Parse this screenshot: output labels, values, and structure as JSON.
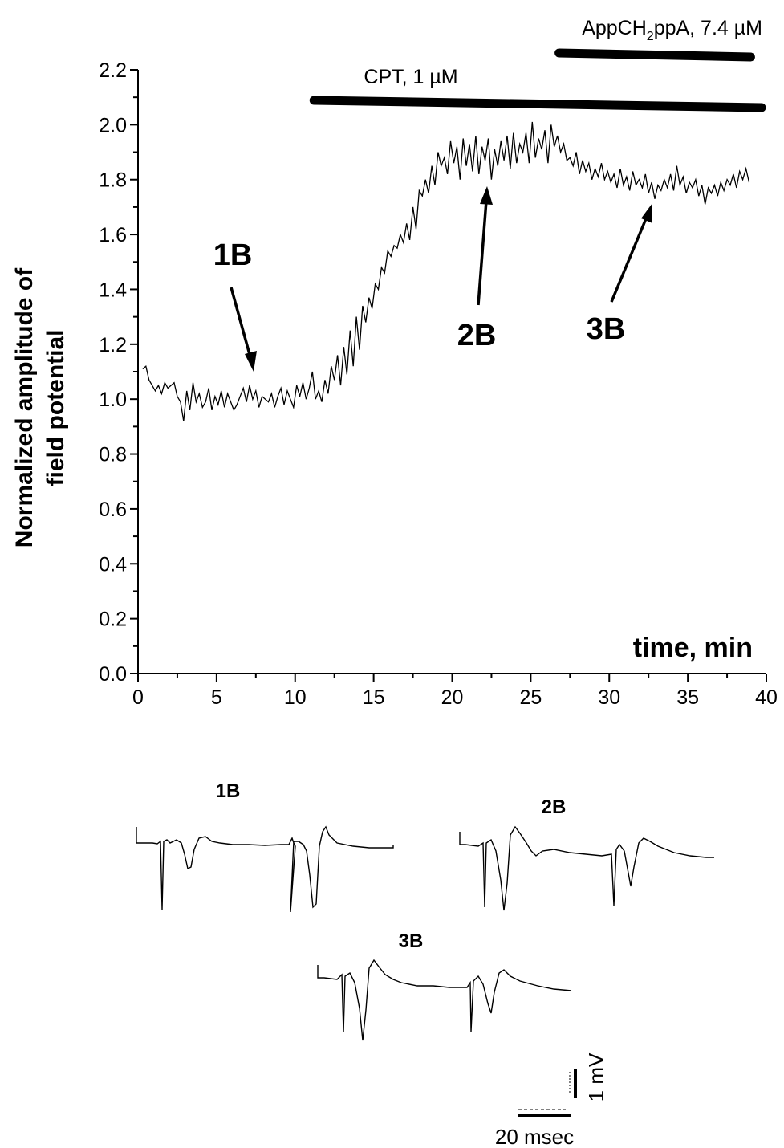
{
  "chart_data": {
    "type": "line",
    "xlabel": "time, min",
    "ylabel_lines": [
      "Normalized amplitude of",
      "field potential"
    ],
    "xlim": [
      0,
      40
    ],
    "ylim": [
      0,
      2.2
    ],
    "x_ticks": [
      "0",
      "5",
      "10",
      "15",
      "20",
      "25",
      "30",
      "35",
      "40"
    ],
    "y_ticks": [
      "0.0",
      "0.2",
      "0.4",
      "0.6",
      "0.8",
      "1.0",
      "1.2",
      "1.4",
      "1.6",
      "1.8",
      "2.0",
      "2.2"
    ],
    "series": [
      {
        "x": [
          0.3,
          0.5,
          0.7,
          0.9,
          1.1,
          1.3,
          1.5,
          1.7,
          1.9,
          2.1,
          2.3,
          2.5,
          2.7,
          2.9,
          3.1,
          3.3,
          3.5,
          3.7,
          3.9,
          4.1,
          4.3,
          4.5,
          4.7,
          4.9,
          5.1,
          5.3,
          5.5,
          5.7,
          5.9,
          6.1,
          6.3,
          6.5,
          6.7,
          6.9,
          7.1,
          7.3,
          7.5,
          7.7,
          7.9,
          8.1,
          8.3,
          8.5,
          8.7,
          8.9,
          9.1,
          9.3,
          9.5,
          9.7,
          9.9,
          10.1,
          10.3,
          10.5,
          10.7,
          10.9,
          11.1,
          11.3,
          11.5,
          11.7,
          11.9,
          12.1,
          12.3,
          12.5,
          12.7,
          12.9,
          13.1,
          13.3,
          13.5,
          13.7,
          13.9,
          14.1,
          14.3,
          14.5,
          14.7,
          14.9,
          15.1,
          15.3,
          15.5,
          15.7,
          15.9,
          16.1,
          16.3,
          16.5,
          16.7,
          16.9,
          17.1,
          17.3,
          17.5,
          17.7,
          17.9,
          18.1,
          18.3,
          18.5,
          18.7,
          18.9,
          19.1,
          19.3,
          19.5,
          19.7,
          19.9,
          20.1,
          20.3,
          20.5,
          20.7,
          20.9,
          21.1,
          21.3,
          21.5,
          21.7,
          21.9,
          22.1,
          22.3,
          22.5,
          22.7,
          22.9,
          23.1,
          23.3,
          23.5,
          23.7,
          23.9,
          24.1,
          24.3,
          24.5,
          24.7,
          24.9,
          25.1,
          25.3,
          25.5,
          25.7,
          25.9,
          26.1,
          26.3,
          26.5,
          26.7,
          26.9,
          27.1,
          27.3,
          27.5,
          27.7,
          27.9,
          28.1,
          28.3,
          28.5,
          28.7,
          28.9,
          29.1,
          29.3,
          29.5,
          29.7,
          29.9,
          30.1,
          30.3,
          30.5,
          30.7,
          30.9,
          31.1,
          31.3,
          31.5,
          31.7,
          31.9,
          32.1,
          32.3,
          32.5,
          32.7,
          32.9,
          33.1,
          33.3,
          33.5,
          33.7,
          33.9,
          34.1,
          34.3,
          34.5,
          34.7,
          34.9,
          35.1,
          35.3,
          35.5,
          35.7,
          35.9,
          36.1,
          36.3,
          36.5,
          36.7,
          36.9,
          37.1,
          37.3,
          37.5,
          37.7,
          37.9,
          38.1,
          38.3,
          38.5,
          38.7,
          38.9
        ],
        "values": [
          1.11,
          1.12,
          1.07,
          1.05,
          1.03,
          1.05,
          1.02,
          1.06,
          1.04,
          1.05,
          1.06,
          1.01,
          0.99,
          0.92,
          1.03,
          0.96,
          1.06,
          0.99,
          1.02,
          0.97,
          0.99,
          1.04,
          0.96,
          1.01,
          0.98,
          1.03,
          0.97,
          1.02,
          0.99,
          0.96,
          0.98,
          1.01,
          1.04,
          0.99,
          1.05,
          1.0,
          1.03,
          0.97,
          1.01,
          1.0,
          0.99,
          1.02,
          0.97,
          1.01,
          1.04,
          0.98,
          1.03,
          1.0,
          0.97,
          1.05,
          1.01,
          1.06,
          1.0,
          1.04,
          1.1,
          1.0,
          1.03,
          0.99,
          1.07,
          1.02,
          1.12,
          1.07,
          1.16,
          1.05,
          1.19,
          1.09,
          1.25,
          1.12,
          1.3,
          1.18,
          1.34,
          1.28,
          1.37,
          1.33,
          1.42,
          1.4,
          1.48,
          1.46,
          1.54,
          1.52,
          1.56,
          1.55,
          1.6,
          1.57,
          1.64,
          1.58,
          1.7,
          1.62,
          1.76,
          1.74,
          1.8,
          1.75,
          1.85,
          1.78,
          1.9,
          1.85,
          1.88,
          1.82,
          1.94,
          1.86,
          1.92,
          1.8,
          1.95,
          1.85,
          1.93,
          1.83,
          1.96,
          1.82,
          1.92,
          1.87,
          1.95,
          1.8,
          1.91,
          1.85,
          1.94,
          1.87,
          1.96,
          1.84,
          1.97,
          1.86,
          1.93,
          1.9,
          1.97,
          1.86,
          2.01,
          1.88,
          1.95,
          1.91,
          1.98,
          1.86,
          2.0,
          1.92,
          1.96,
          1.9,
          1.93,
          1.87,
          1.88,
          1.85,
          1.9,
          1.82,
          1.87,
          1.83,
          1.86,
          1.8,
          1.84,
          1.81,
          1.86,
          1.8,
          1.83,
          1.79,
          1.82,
          1.77,
          1.84,
          1.78,
          1.81,
          1.76,
          1.83,
          1.78,
          1.8,
          1.77,
          1.82,
          1.75,
          1.79,
          1.73,
          1.78,
          1.76,
          1.8,
          1.77,
          1.82,
          1.76,
          1.85,
          1.78,
          1.81,
          1.75,
          1.79,
          1.77,
          1.8,
          1.74,
          1.78,
          1.71,
          1.77,
          1.75,
          1.78,
          1.74,
          1.79,
          1.76,
          1.8,
          1.78,
          1.82,
          1.77,
          1.83,
          1.8,
          1.84,
          1.79
        ]
      }
    ],
    "bars": [
      {
        "label_html": "CPT, 1 µM",
        "start": 11.2,
        "end": 40
      }
    ],
    "bar2": {
      "label_main": "AppCH",
      "label_sub": "2",
      "label_tail": "ppA, 7.4 µM",
      "start": 26.8,
      "end": 39
    }
  },
  "annotations": {
    "a1": "1B",
    "a2": "2B",
    "a3": "3B"
  },
  "traces": {
    "t1": "1B",
    "t2": "2B",
    "t3": "3B"
  },
  "scale": {
    "voltage": "1 mV",
    "time": "20 msec"
  }
}
